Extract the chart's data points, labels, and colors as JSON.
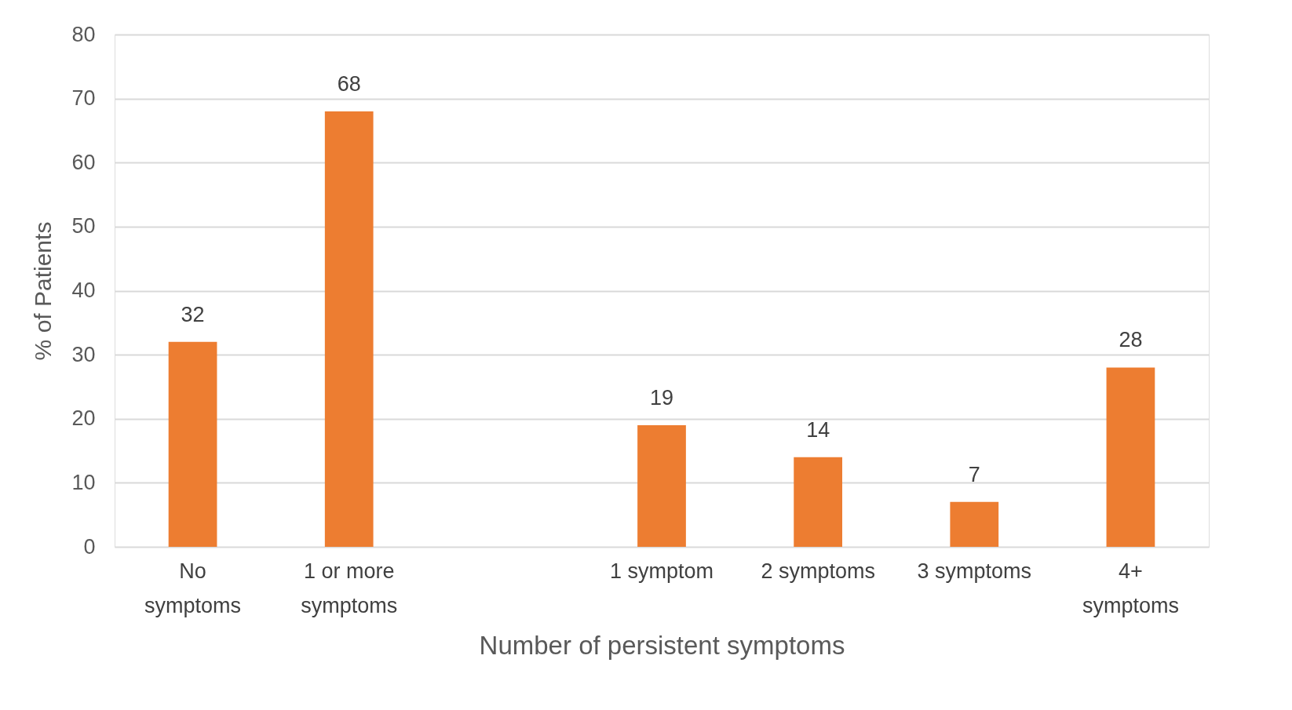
{
  "chart_data": {
    "type": "bar",
    "xlabel": "Number of persistent symptoms",
    "ylabel": "% of Patients",
    "categories": [
      "No\nsymptoms",
      "1 or more\nsymptoms",
      null,
      "1 symptom",
      "2 symptoms",
      "3 symptoms",
      "4+\nsymptoms"
    ],
    "values": [
      32,
      68,
      null,
      19,
      14,
      7,
      28
    ],
    "color": "#ed7d31",
    "ylim": [
      0,
      80
    ],
    "yticks": [
      0,
      10,
      20,
      30,
      40,
      50,
      60,
      70,
      80
    ],
    "grid": "y",
    "data_labels": true
  }
}
